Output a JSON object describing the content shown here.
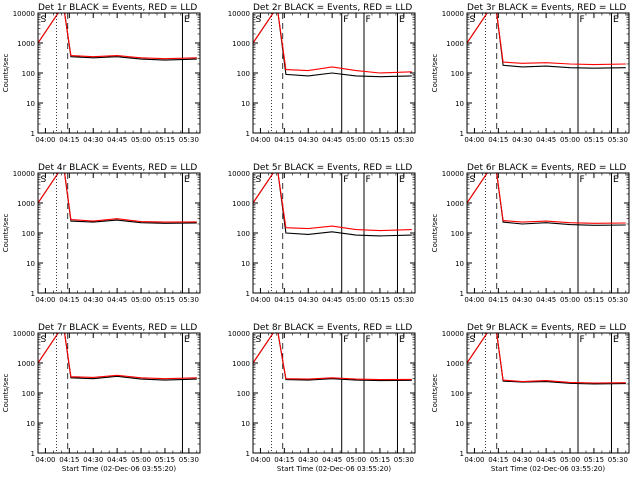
{
  "chart_data": [
    {
      "type": "line",
      "id": "det1",
      "title": "Det 1r BLACK = Events, RED = LLD",
      "ylabel": "Counts/sec",
      "xlabel": "",
      "x_tick_labels": [
        "04:00",
        "04:15",
        "04:30",
        "04:45",
        "05:00",
        "05:15",
        "05:30"
      ],
      "y_tick_labels": [
        "1",
        "10",
        "100",
        "1000",
        "10000"
      ],
      "y_scale": "log",
      "ylim": [
        1,
        10000
      ],
      "xlim": [
        "03:55:20",
        "05:37:00"
      ],
      "dotted_markers": [
        "04:07",
        "05:26"
      ],
      "dashed_markers": [
        "04:14"
      ],
      "solid_markers": [],
      "letter_markers": [
        {
          "t": "03:56",
          "text": "S"
        },
        {
          "t": "05:26",
          "text": "E"
        }
      ],
      "series": [
        {
          "color": "#000000",
          "x": [
            "03:55:20",
            "04:08",
            "04:12",
            "04:16",
            "04:30",
            "04:45",
            "05:00",
            "05:15",
            "05:35"
          ],
          "values": [
            1000,
            10000,
            10000,
            350,
            320,
            350,
            290,
            270,
            290
          ]
        },
        {
          "color": "#ff0000",
          "x": [
            "03:55:20",
            "04:08",
            "04:12",
            "04:16",
            "04:30",
            "04:45",
            "05:00",
            "05:15",
            "05:35"
          ],
          "values": [
            1000,
            10000,
            10000,
            380,
            350,
            380,
            320,
            300,
            320
          ]
        }
      ]
    },
    {
      "type": "line",
      "id": "det2",
      "title": "Det 2r BLACK = Events, RED = LLD",
      "ylabel": "",
      "xlabel": "",
      "x_tick_labels": [
        "04:00",
        "04:15",
        "04:30",
        "04:45",
        "05:00",
        "05:15",
        "05:30"
      ],
      "y_tick_labels": [
        "1",
        "10",
        "100",
        "1000",
        "10000"
      ],
      "y_scale": "log",
      "ylim": [
        1,
        10000
      ],
      "xlim": [
        "03:55:20",
        "05:37:00"
      ],
      "dotted_markers": [
        "04:07",
        "05:26"
      ],
      "dashed_markers": [
        "04:14"
      ],
      "solid_markers": [],
      "letter_markers": [
        {
          "t": "03:56",
          "text": "S"
        },
        {
          "t": "04:51",
          "text": "F"
        },
        {
          "t": "05:05",
          "text": "F"
        },
        {
          "t": "05:26",
          "text": "E"
        }
      ],
      "series": [
        {
          "color": "#000000",
          "x": [
            "03:55:20",
            "04:08",
            "04:11",
            "04:16",
            "04:30",
            "04:45",
            "05:00",
            "05:15",
            "05:35"
          ],
          "values": [
            1000,
            10000,
            10000,
            90,
            80,
            100,
            80,
            75,
            80
          ]
        },
        {
          "color": "#ff0000",
          "x": [
            "03:55:20",
            "04:08",
            "04:11",
            "04:16",
            "04:30",
            "04:45",
            "05:00",
            "05:15",
            "05:35"
          ],
          "values": [
            1000,
            10000,
            10000,
            130,
            120,
            160,
            120,
            100,
            110
          ]
        }
      ]
    },
    {
      "type": "line",
      "id": "det3",
      "title": "Det 3r BLACK = Events, RED = LLD",
      "ylabel": "Counts/sec",
      "xlabel": "",
      "x_tick_labels": [
        "04:00",
        "04:15",
        "04:30",
        "04:45",
        "05:00",
        "05:15",
        "05:30"
      ],
      "y_tick_labels": [
        "1",
        "10",
        "100",
        "1000",
        "10000"
      ],
      "y_scale": "log",
      "ylim": [
        1,
        10000
      ],
      "xlim": [
        "03:55:20",
        "05:37:00"
      ],
      "dotted_markers": [
        "04:07",
        "05:26"
      ],
      "dashed_markers": [
        "04:14"
      ],
      "solid_markers": [],
      "letter_markers": [
        {
          "t": "03:56",
          "text": "S"
        },
        {
          "t": "05:05",
          "text": "F"
        },
        {
          "t": "05:26",
          "text": "E"
        }
      ],
      "series": [
        {
          "color": "#000000",
          "x": [
            "03:55:20",
            "04:08",
            "04:14",
            "04:18",
            "04:30",
            "04:45",
            "05:00",
            "05:15",
            "05:35"
          ],
          "values": [
            1000,
            10000,
            10000,
            180,
            160,
            170,
            150,
            145,
            150
          ]
        },
        {
          "color": "#ff0000",
          "x": [
            "03:55:20",
            "04:08",
            "04:14",
            "04:18",
            "04:30",
            "04:45",
            "05:00",
            "05:15",
            "05:35"
          ],
          "values": [
            1000,
            10000,
            10000,
            230,
            210,
            220,
            200,
            190,
            200
          ]
        }
      ]
    },
    {
      "type": "line",
      "id": "det4",
      "title": "Det 4r BLACK = Events, RED = LLD",
      "ylabel": "Counts/sec",
      "xlabel": "",
      "x_tick_labels": [
        "04:00",
        "04:15",
        "04:30",
        "04:45",
        "05:00",
        "05:15",
        "05:30"
      ],
      "y_tick_labels": [
        "1",
        "10",
        "100",
        "1000",
        "10000"
      ],
      "y_scale": "log",
      "ylim": [
        1,
        10000
      ],
      "xlim": [
        "03:55:20",
        "05:37:00"
      ],
      "dotted_markers": [
        "04:07",
        "05:26"
      ],
      "dashed_markers": [
        "04:14"
      ],
      "solid_markers": [],
      "letter_markers": [
        {
          "t": "03:56",
          "text": "S"
        },
        {
          "t": "05:26",
          "text": "E"
        }
      ],
      "series": [
        {
          "color": "#000000",
          "x": [
            "03:55:20",
            "04:08",
            "04:12",
            "04:16",
            "04:30",
            "04:45",
            "05:00",
            "05:15",
            "05:35"
          ],
          "values": [
            1000,
            10000,
            10000,
            250,
            230,
            270,
            220,
            210,
            215
          ]
        },
        {
          "color": "#ff0000",
          "x": [
            "03:55:20",
            "04:08",
            "04:12",
            "04:16",
            "04:30",
            "04:45",
            "05:00",
            "05:15",
            "05:35"
          ],
          "values": [
            1000,
            10000,
            10000,
            280,
            250,
            300,
            240,
            230,
            235
          ]
        }
      ]
    },
    {
      "type": "line",
      "id": "det5",
      "title": "Det 5r BLACK = Events, RED = LLD",
      "ylabel": "",
      "xlabel": "",
      "x_tick_labels": [
        "04:00",
        "04:15",
        "04:30",
        "04:45",
        "05:00",
        "05:15",
        "05:30"
      ],
      "y_tick_labels": [
        "1",
        "10",
        "100",
        "1000",
        "10000"
      ],
      "y_scale": "log",
      "ylim": [
        1,
        10000
      ],
      "xlim": [
        "03:55:20",
        "05:37:00"
      ],
      "dotted_markers": [
        "04:07",
        "05:26"
      ],
      "dashed_markers": [
        "04:14"
      ],
      "solid_markers": [],
      "letter_markers": [
        {
          "t": "03:56",
          "text": "S"
        },
        {
          "t": "04:51",
          "text": "F"
        },
        {
          "t": "05:05",
          "text": "F"
        },
        {
          "t": "05:26",
          "text": "E"
        }
      ],
      "series": [
        {
          "color": "#000000",
          "x": [
            "03:55:20",
            "04:08",
            "04:11",
            "04:16",
            "04:30",
            "04:45",
            "05:00",
            "05:15",
            "05:35"
          ],
          "values": [
            1000,
            10000,
            10000,
            100,
            90,
            110,
            85,
            80,
            85
          ]
        },
        {
          "color": "#ff0000",
          "x": [
            "03:55:20",
            "04:08",
            "04:11",
            "04:16",
            "04:30",
            "04:45",
            "05:00",
            "05:15",
            "05:35"
          ],
          "values": [
            1000,
            10000,
            10000,
            150,
            140,
            170,
            130,
            120,
            130
          ]
        }
      ]
    },
    {
      "type": "line",
      "id": "det6",
      "title": "Det 6r BLACK = Events, RED = LLD",
      "ylabel": "Counts/sec",
      "xlabel": "",
      "x_tick_labels": [
        "04:00",
        "04:15",
        "04:30",
        "04:45",
        "05:00",
        "05:15",
        "05:30"
      ],
      "y_tick_labels": [
        "1",
        "10",
        "100",
        "1000",
        "10000"
      ],
      "y_scale": "log",
      "ylim": [
        1,
        10000
      ],
      "xlim": [
        "03:55:20",
        "05:37:00"
      ],
      "dotted_markers": [
        "04:07",
        "05:26"
      ],
      "dashed_markers": [
        "04:14"
      ],
      "solid_markers": [],
      "letter_markers": [
        {
          "t": "03:56",
          "text": "S"
        },
        {
          "t": "05:05",
          "text": "F"
        },
        {
          "t": "05:26",
          "text": "E"
        }
      ],
      "series": [
        {
          "color": "#000000",
          "x": [
            "03:55:20",
            "04:08",
            "04:14",
            "04:18",
            "04:30",
            "04:45",
            "05:00",
            "05:15",
            "05:35"
          ],
          "values": [
            1000,
            10000,
            10000,
            230,
            200,
            220,
            190,
            180,
            185
          ]
        },
        {
          "color": "#ff0000",
          "x": [
            "03:55:20",
            "04:08",
            "04:14",
            "04:18",
            "04:30",
            "04:45",
            "05:00",
            "05:15",
            "05:35"
          ],
          "values": [
            1000,
            10000,
            10000,
            260,
            230,
            250,
            220,
            210,
            215
          ]
        }
      ]
    },
    {
      "type": "line",
      "id": "det7",
      "title": "Det 7r BLACK = Events, RED = LLD",
      "ylabel": "Counts/sec",
      "xlabel": "Start Time (02-Dec-06 03:55:20)",
      "x_tick_labels": [
        "04:00",
        "04:15",
        "04:30",
        "04:45",
        "05:00",
        "05:15",
        "05:30"
      ],
      "y_tick_labels": [
        "1",
        "10",
        "100",
        "1000",
        "10000"
      ],
      "y_scale": "log",
      "ylim": [
        1,
        10000
      ],
      "xlim": [
        "03:55:20",
        "05:37:00"
      ],
      "dotted_markers": [
        "04:07",
        "05:26"
      ],
      "dashed_markers": [
        "04:14"
      ],
      "solid_markers": [],
      "letter_markers": [
        {
          "t": "03:56",
          "text": "S"
        },
        {
          "t": "05:26",
          "text": "E"
        }
      ],
      "series": [
        {
          "color": "#000000",
          "x": [
            "03:55:20",
            "04:08",
            "04:12",
            "04:16",
            "04:30",
            "04:45",
            "05:00",
            "05:15",
            "05:35"
          ],
          "values": [
            1000,
            10000,
            10000,
            320,
            300,
            360,
            290,
            270,
            290
          ]
        },
        {
          "color": "#ff0000",
          "x": [
            "03:55:20",
            "04:08",
            "04:12",
            "04:16",
            "04:30",
            "04:45",
            "05:00",
            "05:15",
            "05:35"
          ],
          "values": [
            1000,
            10000,
            10000,
            350,
            330,
            390,
            320,
            300,
            320
          ]
        }
      ]
    },
    {
      "type": "line",
      "id": "det8",
      "title": "Det 8r BLACK = Events, RED = LLD",
      "ylabel": "",
      "xlabel": "Start Time (02-Dec-06 03:55:20)",
      "x_tick_labels": [
        "04:00",
        "04:15",
        "04:30",
        "04:45",
        "05:00",
        "05:15",
        "05:30"
      ],
      "y_tick_labels": [
        "1",
        "10",
        "100",
        "1000",
        "10000"
      ],
      "y_scale": "log",
      "ylim": [
        1,
        10000
      ],
      "xlim": [
        "03:55:20",
        "05:37:00"
      ],
      "dotted_markers": [
        "04:07",
        "05:26"
      ],
      "dashed_markers": [
        "04:14"
      ],
      "solid_markers": [],
      "letter_markers": [
        {
          "t": "03:56",
          "text": "S"
        },
        {
          "t": "04:51",
          "text": "F"
        },
        {
          "t": "05:05",
          "text": "F"
        },
        {
          "t": "05:26",
          "text": "E"
        }
      ],
      "series": [
        {
          "color": "#000000",
          "x": [
            "03:55:20",
            "04:08",
            "04:11",
            "04:16",
            "04:30",
            "04:45",
            "05:00",
            "05:15",
            "05:35"
          ],
          "values": [
            1000,
            10000,
            10000,
            280,
            270,
            300,
            270,
            260,
            265
          ]
        },
        {
          "color": "#ff0000",
          "x": [
            "03:55:20",
            "04:08",
            "04:11",
            "04:16",
            "04:30",
            "04:45",
            "05:00",
            "05:15",
            "05:35"
          ],
          "values": [
            1000,
            10000,
            10000,
            300,
            290,
            320,
            290,
            280,
            285
          ]
        }
      ]
    },
    {
      "type": "line",
      "id": "det9",
      "title": "Det 9r BLACK = Events, RED = LLD",
      "ylabel": "Counts/sec",
      "xlabel": "Start Time (02-Dec-06 03:55:20)",
      "x_tick_labels": [
        "04:00",
        "04:15",
        "04:30",
        "04:45",
        "05:00",
        "05:15",
        "05:30"
      ],
      "y_tick_labels": [
        "1",
        "10",
        "100",
        "1000",
        "10000"
      ],
      "y_scale": "log",
      "ylim": [
        1,
        10000
      ],
      "xlim": [
        "03:55:20",
        "05:37:00"
      ],
      "dotted_markers": [
        "04:07",
        "05:26"
      ],
      "dashed_markers": [
        "04:14"
      ],
      "solid_markers": [],
      "letter_markers": [
        {
          "t": "03:56",
          "text": "S"
        },
        {
          "t": "05:05",
          "text": "F"
        },
        {
          "t": "05:26",
          "text": "E"
        }
      ],
      "series": [
        {
          "color": "#000000",
          "x": [
            "03:55:20",
            "04:08",
            "04:14",
            "04:18",
            "04:30",
            "04:45",
            "05:00",
            "05:15",
            "05:35"
          ],
          "values": [
            1000,
            10000,
            10000,
            250,
            230,
            240,
            210,
            200,
            205
          ]
        },
        {
          "color": "#ff0000",
          "x": [
            "03:55:20",
            "04:08",
            "04:14",
            "04:18",
            "04:30",
            "04:45",
            "05:00",
            "05:15",
            "05:35"
          ],
          "values": [
            1000,
            10000,
            10000,
            270,
            240,
            260,
            225,
            215,
            220
          ]
        }
      ]
    }
  ]
}
